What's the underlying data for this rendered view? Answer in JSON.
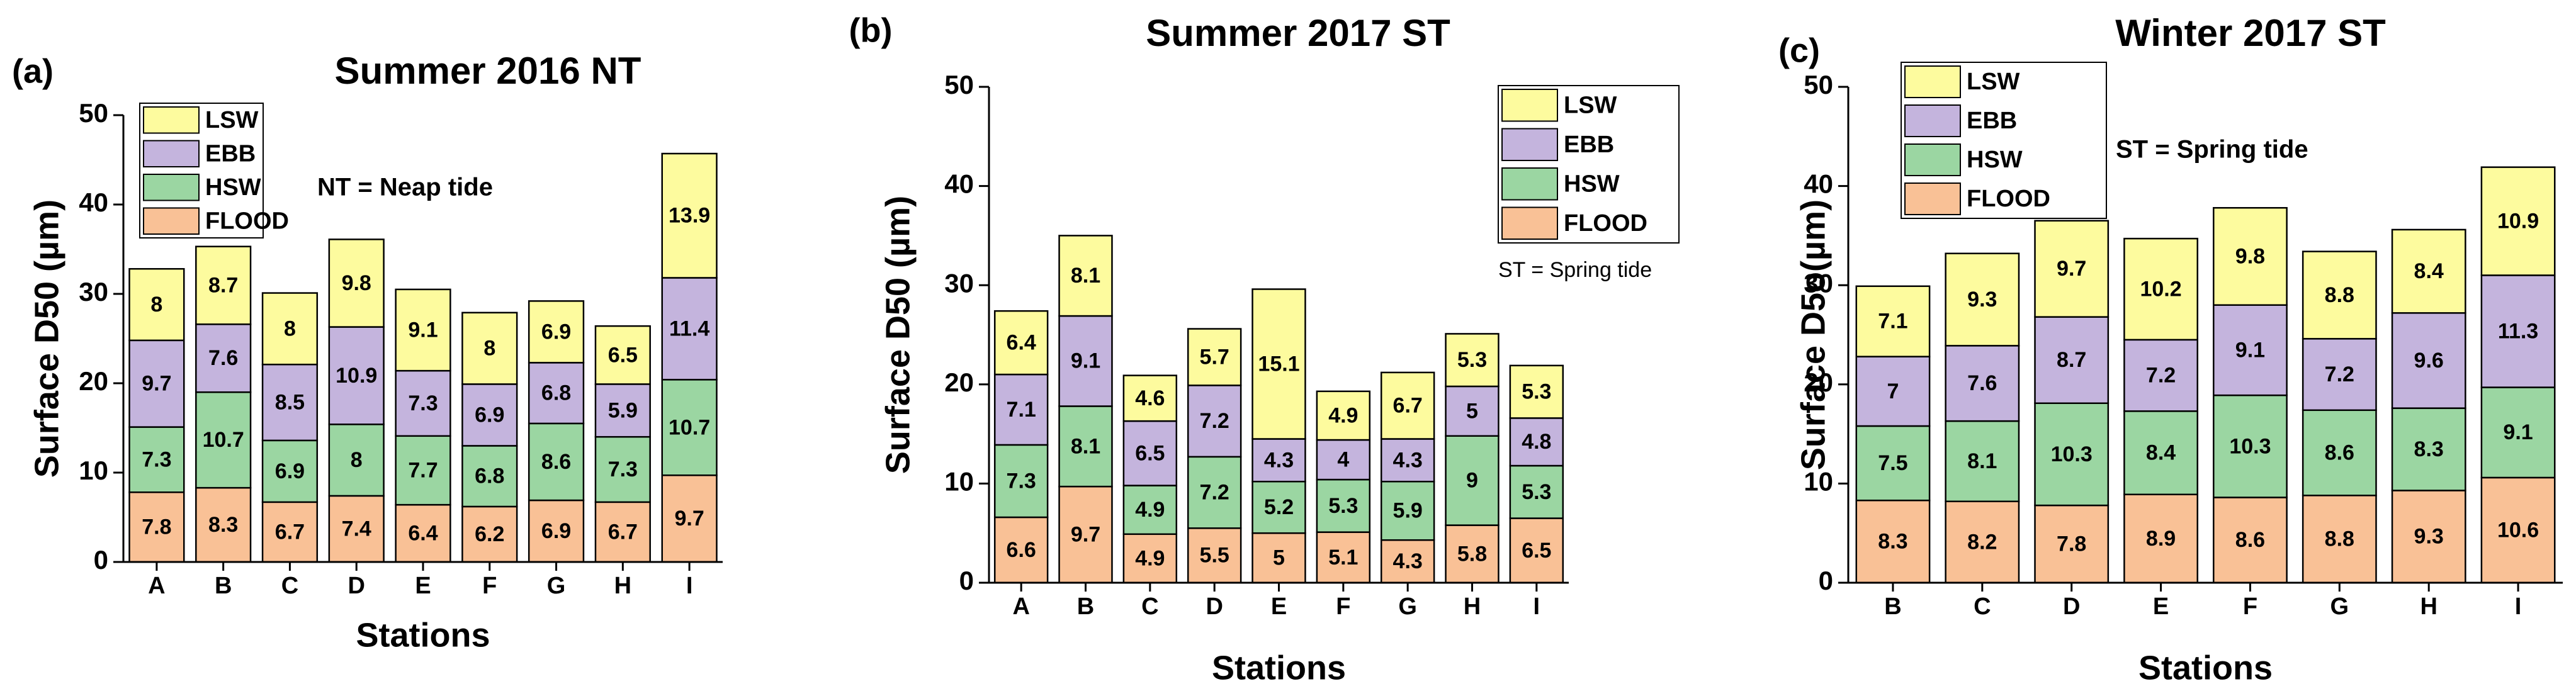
{
  "chart_data": [
    {
      "type": "bar",
      "stacked": true,
      "panel_label": "(a)",
      "title": "Summer 2016 NT",
      "annotation": "NT = Neap tide",
      "x_label": "Stations",
      "y_label": "Surface D50 (µm)",
      "categories": [
        "A",
        "B",
        "C",
        "D",
        "E",
        "F",
        "G",
        "H",
        "I"
      ],
      "series": [
        {
          "name": "FLOOD",
          "color": "#f9c196",
          "values": [
            7.8,
            8.3,
            6.7,
            7.4,
            6.4,
            6.2,
            6.9,
            6.7,
            9.7
          ]
        },
        {
          "name": "HSW",
          "color": "#9bd6a2",
          "values": [
            7.3,
            10.7,
            6.9,
            8,
            7.7,
            6.8,
            8.6,
            7.3,
            10.7
          ]
        },
        {
          "name": "EBB",
          "color": "#c4b4dd",
          "values": [
            9.7,
            7.6,
            8.5,
            10.9,
            7.3,
            6.9,
            6.8,
            5.9,
            11.4
          ]
        },
        {
          "name": "LSW",
          "color": "#fdfb9e",
          "values": [
            8,
            8.7,
            8,
            9.8,
            9.1,
            8,
            6.9,
            6.5,
            13.9
          ]
        }
      ],
      "ylim": [
        0,
        50
      ],
      "yticks": [
        0,
        10,
        20,
        30,
        40,
        50
      ]
    },
    {
      "type": "bar",
      "stacked": true,
      "panel_label": "(b)",
      "title": "Summer 2017 ST",
      "annotation": "ST = Spring tide",
      "x_label": "Stations",
      "y_label": "Surface D50 (µm)",
      "categories": [
        "A",
        "B",
        "C",
        "D",
        "E",
        "F",
        "G",
        "H",
        "I"
      ],
      "series": [
        {
          "name": "FLOOD",
          "color": "#f9c196",
          "values": [
            6.6,
            9.7,
            4.9,
            5.5,
            5,
            5.1,
            4.3,
            5.8,
            6.5
          ]
        },
        {
          "name": "HSW",
          "color": "#9bd6a2",
          "values": [
            7.3,
            8.1,
            4.9,
            7.2,
            5.2,
            5.3,
            5.9,
            9,
            5.3
          ]
        },
        {
          "name": "EBB",
          "color": "#c4b4dd",
          "values": [
            7.1,
            9.1,
            6.5,
            7.2,
            4.3,
            4,
            4.3,
            5,
            4.8
          ]
        },
        {
          "name": "LSW",
          "color": "#fdfb9e",
          "values": [
            6.4,
            8.1,
            4.6,
            5.7,
            15.1,
            4.9,
            6.7,
            5.3,
            5.3
          ]
        }
      ],
      "ylim": [
        0,
        50
      ],
      "yticks": [
        0,
        10,
        20,
        30,
        40,
        50
      ]
    },
    {
      "type": "bar",
      "stacked": true,
      "panel_label": "(c)",
      "title": "Winter 2017 ST",
      "annotation": "ST = Spring tide",
      "x_label": "Stations",
      "y_label": "Surface D5o(µm)",
      "categories": [
        "B",
        "C",
        "D",
        "E",
        "F",
        "G",
        "H",
        "I"
      ],
      "series": [
        {
          "name": "FLOOD",
          "color": "#f9c196",
          "values": [
            8.3,
            8.2,
            7.8,
            8.9,
            8.6,
            8.8,
            9.3,
            10.6
          ]
        },
        {
          "name": "HSW",
          "color": "#9bd6a2",
          "values": [
            7.5,
            8.1,
            10.3,
            8.4,
            10.3,
            8.6,
            8.3,
            9.1
          ]
        },
        {
          "name": "EBB",
          "color": "#c4b4dd",
          "values": [
            7,
            7.6,
            8.7,
            7.2,
            9.1,
            7.2,
            9.6,
            11.3
          ]
        },
        {
          "name": "LSW",
          "color": "#fdfb9e",
          "values": [
            7.1,
            9.3,
            9.7,
            10.2,
            9.8,
            8.8,
            8.4,
            10.9
          ]
        }
      ],
      "ylim": [
        0,
        50
      ],
      "yticks": [
        0,
        10,
        20,
        30,
        40,
        50
      ]
    }
  ]
}
